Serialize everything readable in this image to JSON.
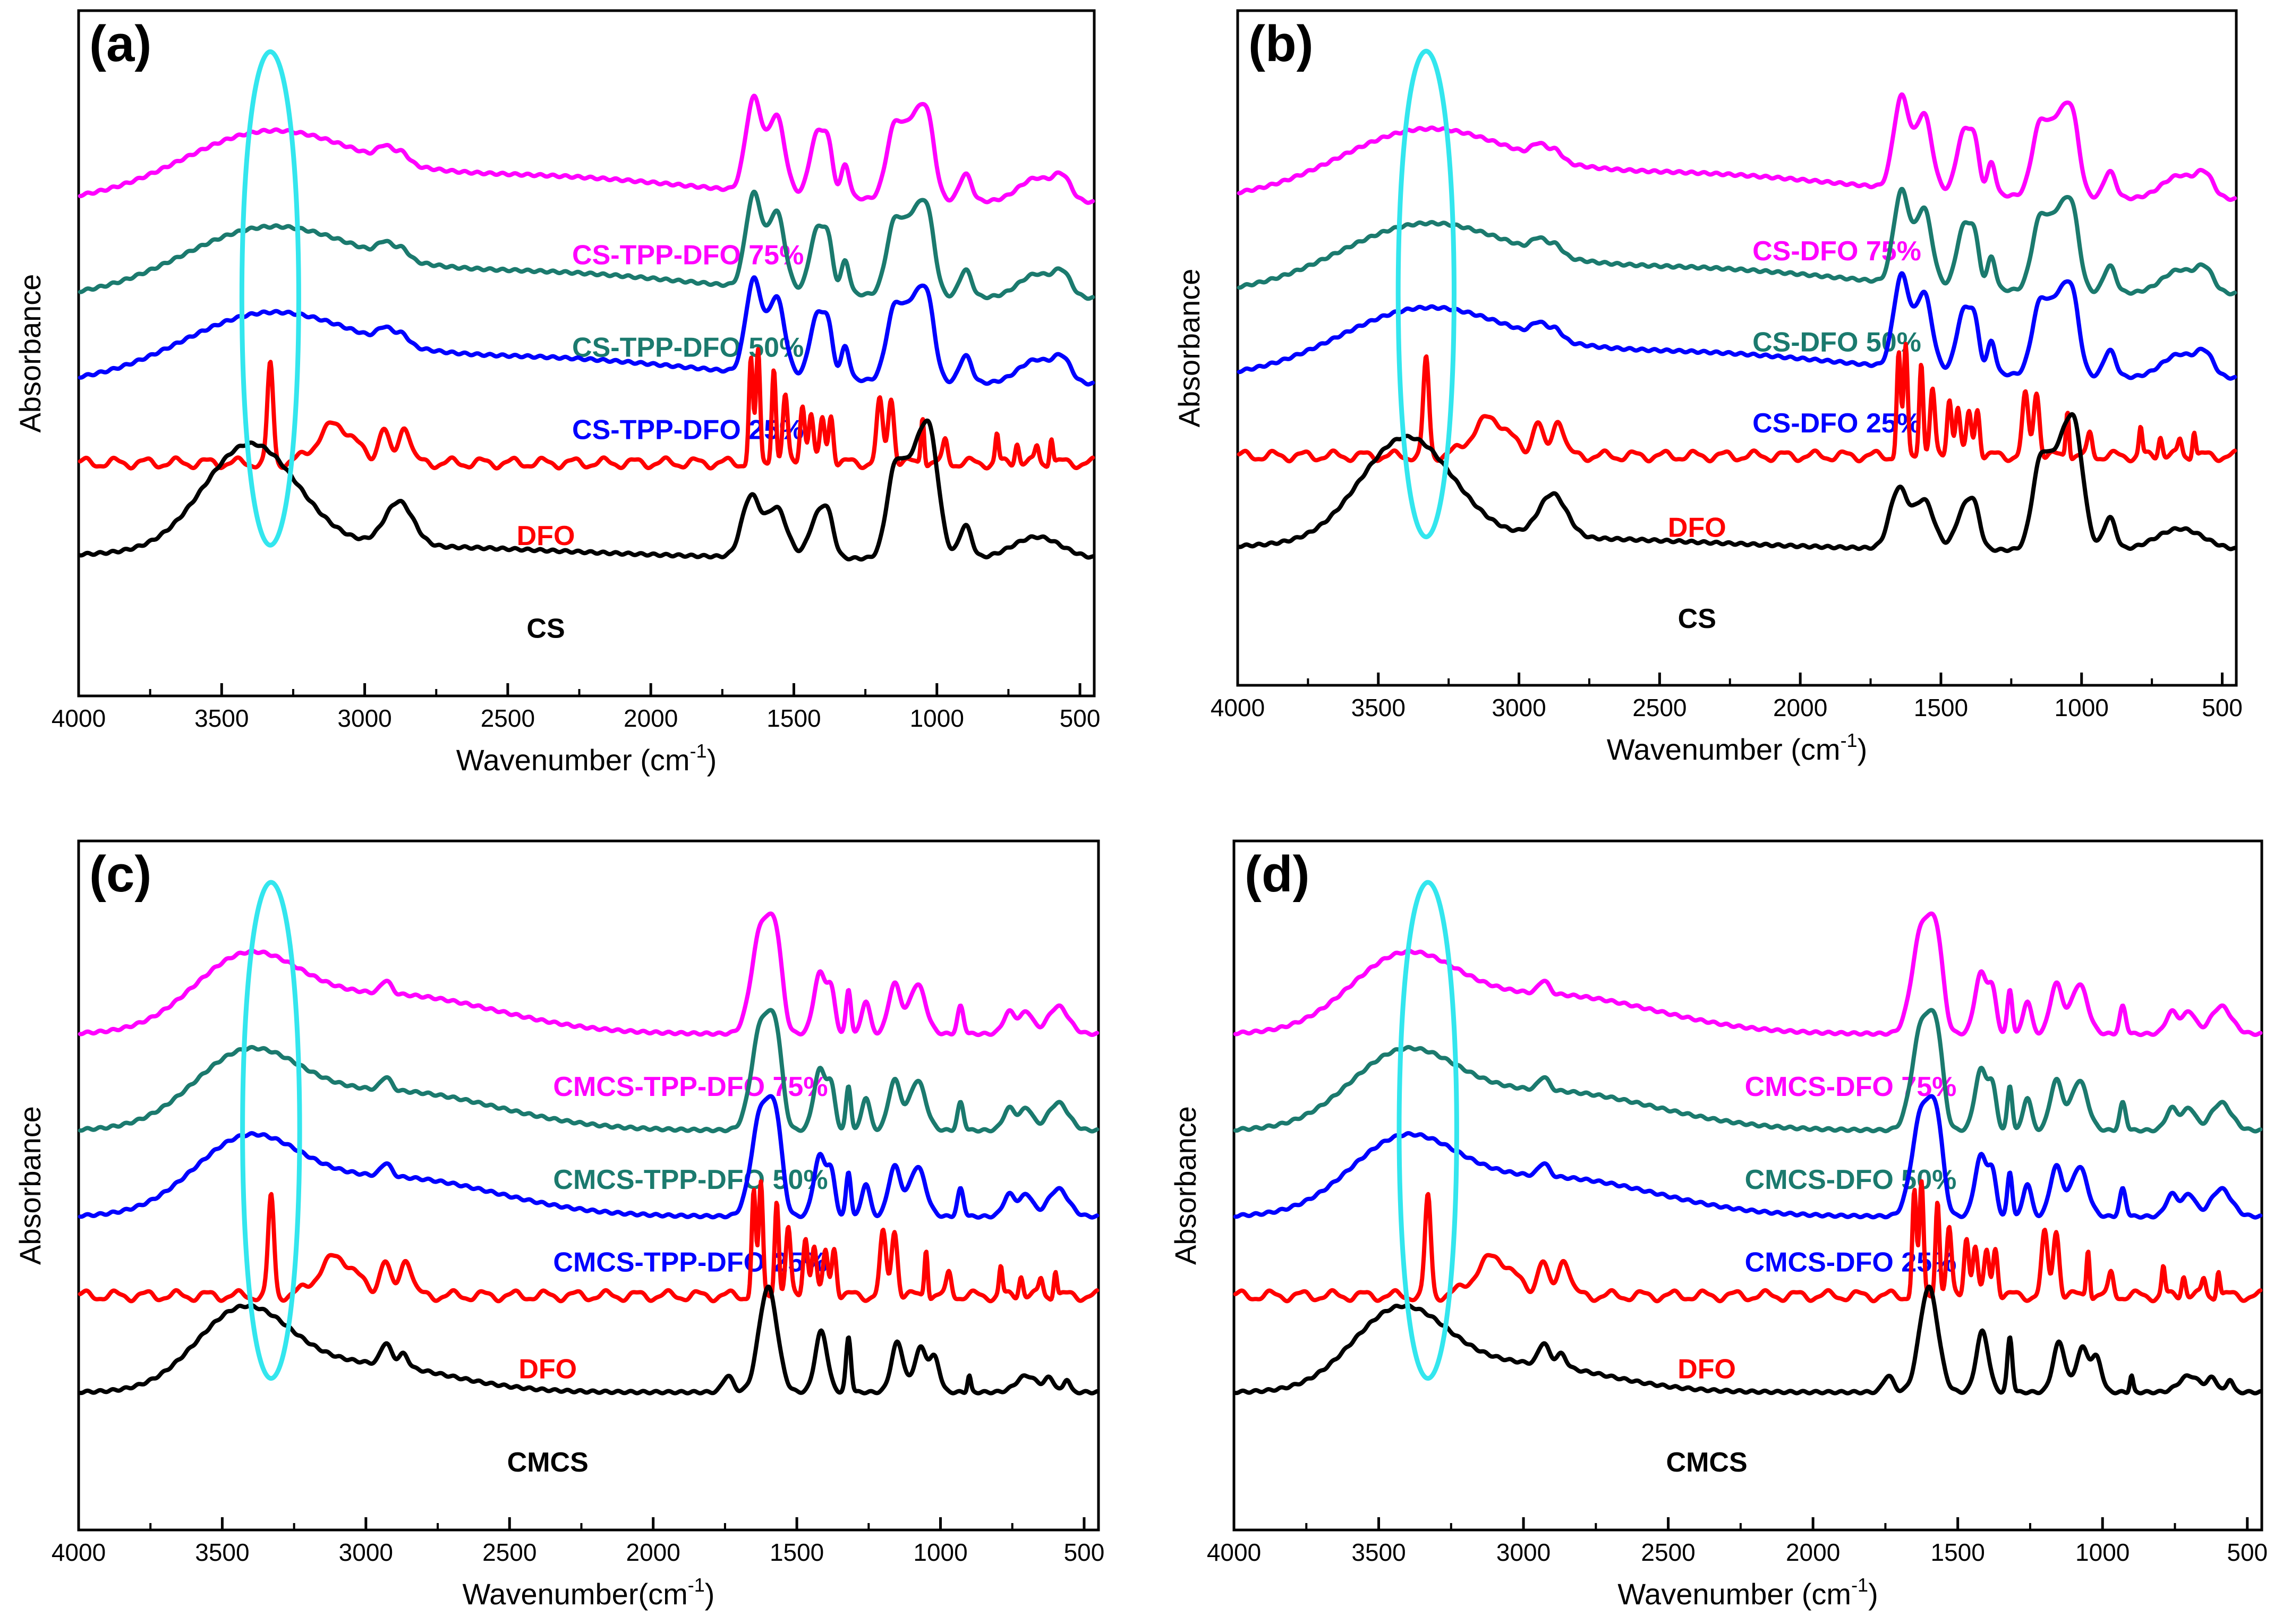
{
  "chart_data": [
    {
      "panel": "(a)",
      "type": "line",
      "xlabel": "Wavenumber (cm",
      "xlabel_sup": "-1",
      "xlabel_tail": ")",
      "ylabel": "Absorbance",
      "xlim": [
        4000,
        450
      ],
      "xticks": [
        4000,
        3500,
        3000,
        2500,
        2000,
        1500,
        1000,
        500
      ],
      "xtick_labels": [
        "4000",
        "3500",
        "3000",
        "2500",
        "2000",
        "1500",
        "1000",
        "500"
      ],
      "y_ticks_shown": false,
      "highlight": {
        "shape": "ellipse",
        "x_center": 3330,
        "color": "#33e6ee"
      },
      "series": [
        {
          "name": "CS-TPP-DFO 75%",
          "color": "#ff00ff",
          "profile": "composite",
          "rank": 0
        },
        {
          "name": "CS-TPP-DFO 50%",
          "color": "#1b7a6e",
          "profile": "composite",
          "rank": 1
        },
        {
          "name": "CS-TPP-DFO 25%",
          "color": "#0000ff",
          "profile": "composite",
          "rank": 2
        },
        {
          "name": "DFO",
          "color": "#ff0000",
          "profile": "dfo",
          "rank": 3
        },
        {
          "name": "CS",
          "color": "#000000",
          "profile": "base",
          "rank": 4
        }
      ]
    },
    {
      "panel": "(b)",
      "type": "line",
      "xlabel": "Wavenumber (cm",
      "xlabel_sup": "-1",
      "xlabel_tail": ")",
      "ylabel": "Absorbance",
      "xlim": [
        4000,
        450
      ],
      "xticks": [
        4000,
        3500,
        3000,
        2500,
        2000,
        1500,
        1000,
        500
      ],
      "xtick_labels": [
        "4000",
        "3500",
        "3000",
        "2500",
        "2000",
        "1500",
        "1000",
        "500"
      ],
      "y_ticks_shown": false,
      "highlight": {
        "shape": "ellipse",
        "x_center": 3330,
        "color": "#33e6ee"
      },
      "series": [
        {
          "name": "CS-DFO 75%",
          "color": "#ff00ff",
          "profile": "composite",
          "rank": 0
        },
        {
          "name": "CS-DFO 50%",
          "color": "#1b7a6e",
          "profile": "composite",
          "rank": 1
        },
        {
          "name": "CS-DFO 25%",
          "color": "#0000ff",
          "profile": "composite",
          "rank": 2
        },
        {
          "name": "DFO",
          "color": "#ff0000",
          "profile": "dfo",
          "rank": 3
        },
        {
          "name": "CS",
          "color": "#000000",
          "profile": "base",
          "rank": 4
        }
      ]
    },
    {
      "panel": "(c)",
      "type": "line",
      "xlabel": "Wavenumber(cm",
      "xlabel_sup": "-1",
      "xlabel_tail": ")",
      "ylabel": "Absorbance",
      "xlim": [
        4000,
        450
      ],
      "xticks": [
        4000,
        3500,
        3000,
        2500,
        2000,
        1500,
        1000,
        500
      ],
      "xtick_labels": [
        "4000",
        "3500",
        "3000",
        "2500",
        "2000",
        "1500",
        "1000",
        "500"
      ],
      "y_ticks_shown": false,
      "highlight": {
        "shape": "ellipse",
        "x_center": 3330,
        "color": "#33e6ee"
      },
      "series": [
        {
          "name": "CMCS-TPP-DFO 75%",
          "color": "#ff00ff",
          "profile": "cmcs-composite",
          "rank": 0
        },
        {
          "name": "CMCS-TPP-DFO 50%",
          "color": "#1b7a6e",
          "profile": "cmcs-composite",
          "rank": 1
        },
        {
          "name": "CMCS-TPP-DFO 25%",
          "color": "#0000ff",
          "profile": "cmcs-composite",
          "rank": 2
        },
        {
          "name": "DFO",
          "color": "#ff0000",
          "profile": "dfo",
          "rank": 3
        },
        {
          "name": "CMCS",
          "color": "#000000",
          "profile": "cmcs",
          "rank": 4
        }
      ]
    },
    {
      "panel": "(d)",
      "type": "line",
      "xlabel": "Wavenumber (cm",
      "xlabel_sup": "-1",
      "xlabel_tail": ")",
      "ylabel": "Absorbance",
      "xlim": [
        4000,
        450
      ],
      "xticks": [
        4000,
        3500,
        3000,
        2500,
        2000,
        1500,
        1000,
        500
      ],
      "xtick_labels": [
        "4000",
        "3500",
        "3000",
        "2500",
        "2000",
        "1500",
        "1000",
        "500"
      ],
      "y_ticks_shown": false,
      "highlight": {
        "shape": "ellipse",
        "x_center": 3330,
        "color": "#33e6ee"
      },
      "series": [
        {
          "name": "CMCS-DFO 75%",
          "color": "#ff00ff",
          "profile": "cmcs-composite",
          "rank": 0
        },
        {
          "name": "CMCS-DFO 50%",
          "color": "#1b7a6e",
          "profile": "cmcs-composite",
          "rank": 1
        },
        {
          "name": "CMCS-DFO 25%",
          "color": "#0000ff",
          "profile": "cmcs-composite",
          "rank": 2
        },
        {
          "name": "DFO",
          "color": "#ff0000",
          "profile": "dfo",
          "rank": 3
        },
        {
          "name": "CMCS",
          "color": "#000000",
          "profile": "cmcs",
          "rank": 4
        }
      ]
    }
  ]
}
